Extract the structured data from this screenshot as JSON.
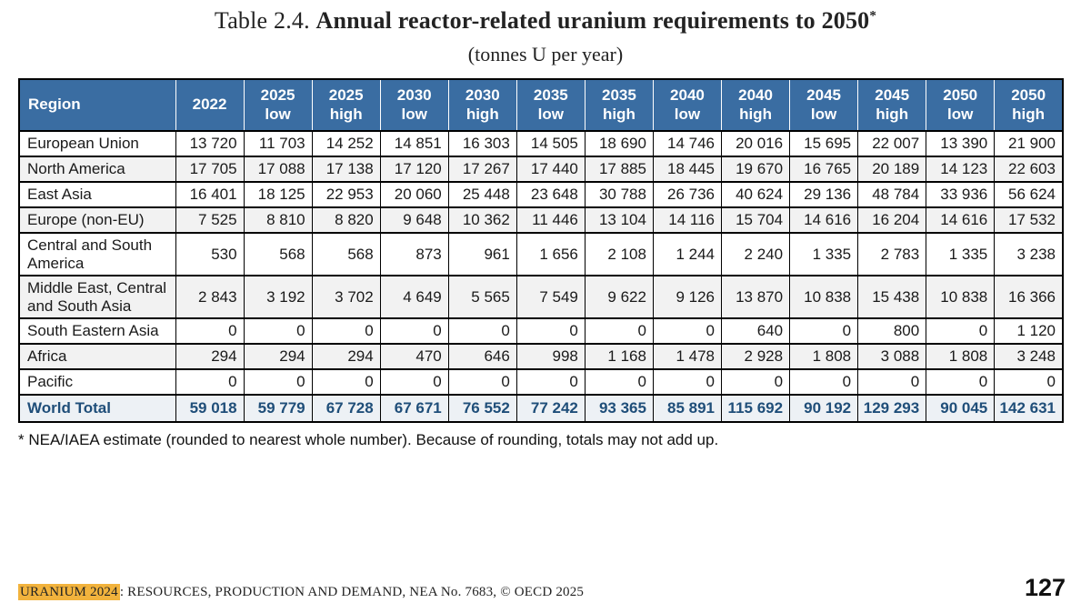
{
  "title": {
    "prefix": "Table 2.4. ",
    "main": "Annual reactor-related uranium requirements to 2050",
    "asterisk": "*",
    "subtitle": "(tonnes U per year)"
  },
  "table": {
    "region_header": "Region",
    "columns": [
      {
        "year": "2022",
        "variant": ""
      },
      {
        "year": "2025",
        "variant": "low"
      },
      {
        "year": "2025",
        "variant": "high"
      },
      {
        "year": "2030",
        "variant": "low"
      },
      {
        "year": "2030",
        "variant": "high"
      },
      {
        "year": "2035",
        "variant": "low"
      },
      {
        "year": "2035",
        "variant": "high"
      },
      {
        "year": "2040",
        "variant": "low"
      },
      {
        "year": "2040",
        "variant": "high"
      },
      {
        "year": "2045",
        "variant": "low"
      },
      {
        "year": "2045",
        "variant": "high"
      },
      {
        "year": "2050",
        "variant": "low"
      },
      {
        "year": "2050",
        "variant": "high"
      }
    ],
    "rows": [
      {
        "region": "European Union",
        "values": [
          "13 720",
          "11 703",
          "14 252",
          "14 851",
          "16 303",
          "14 505",
          "18 690",
          "14 746",
          "20 016",
          "15 695",
          "22 007",
          "13 390",
          "21 900"
        ]
      },
      {
        "region": "North America",
        "values": [
          "17 705",
          "17 088",
          "17 138",
          "17 120",
          "17 267",
          "17 440",
          "17 885",
          "18 445",
          "19 670",
          "16 765",
          "20 189",
          "14 123",
          "22 603"
        ]
      },
      {
        "region": "East Asia",
        "values": [
          "16 401",
          "18 125",
          "22 953",
          "20 060",
          "25 448",
          "23 648",
          "30 788",
          "26 736",
          "40 624",
          "29 136",
          "48 784",
          "33 936",
          "56 624"
        ]
      },
      {
        "region": "Europe (non-EU)",
        "values": [
          "7 525",
          "8 810",
          "8 820",
          "9 648",
          "10 362",
          "11 446",
          "13 104",
          "14 116",
          "15 704",
          "14 616",
          "16 204",
          "14 616",
          "17 532"
        ]
      },
      {
        "region": "Central and South America",
        "values": [
          "530",
          "568",
          "568",
          "873",
          "961",
          "1 656",
          "2 108",
          "1 244",
          "2 240",
          "1 335",
          "2 783",
          "1 335",
          "3 238"
        ]
      },
      {
        "region": "Middle East, Central and South Asia",
        "values": [
          "2 843",
          "3 192",
          "3 702",
          "4 649",
          "5 565",
          "7 549",
          "9 622",
          "9 126",
          "13 870",
          "10 838",
          "15 438",
          "10 838",
          "16 366"
        ]
      },
      {
        "region": "South Eastern Asia",
        "values": [
          "0",
          "0",
          "0",
          "0",
          "0",
          "0",
          "0",
          "0",
          "640",
          "0",
          "800",
          "0",
          "1 120"
        ]
      },
      {
        "region": "Africa",
        "values": [
          "294",
          "294",
          "294",
          "470",
          "646",
          "998",
          "1 168",
          "1 478",
          "2 928",
          "1 808",
          "3 088",
          "1 808",
          "3 248"
        ]
      },
      {
        "region": "Pacific",
        "values": [
          "0",
          "0",
          "0",
          "0",
          "0",
          "0",
          "0",
          "0",
          "0",
          "0",
          "0",
          "0",
          "0"
        ]
      }
    ],
    "total": {
      "region": "World Total",
      "values": [
        "59 018",
        "59 779",
        "67 728",
        "67 671",
        "76 552",
        "77 242",
        "93 365",
        "85 891",
        "115 692",
        "90 192",
        "129 293",
        "90 045",
        "142 631"
      ]
    }
  },
  "footnote": "* NEA/IAEA estimate (rounded to nearest whole number). Because of rounding, totals may not add up.",
  "footer": {
    "highlight": "URANIUM 2024",
    "rest": ": RESOURCES, PRODUCTION AND DEMAND, NEA No. 7683, © OECD 2025",
    "page_number": "127"
  },
  "colors": {
    "header_bg": "#3a6da2",
    "total_text": "#1f4e79",
    "row_stripe": "#f2f2f2",
    "total_bg": "#edf1f5",
    "footer_highlight": "#f2b33d"
  }
}
